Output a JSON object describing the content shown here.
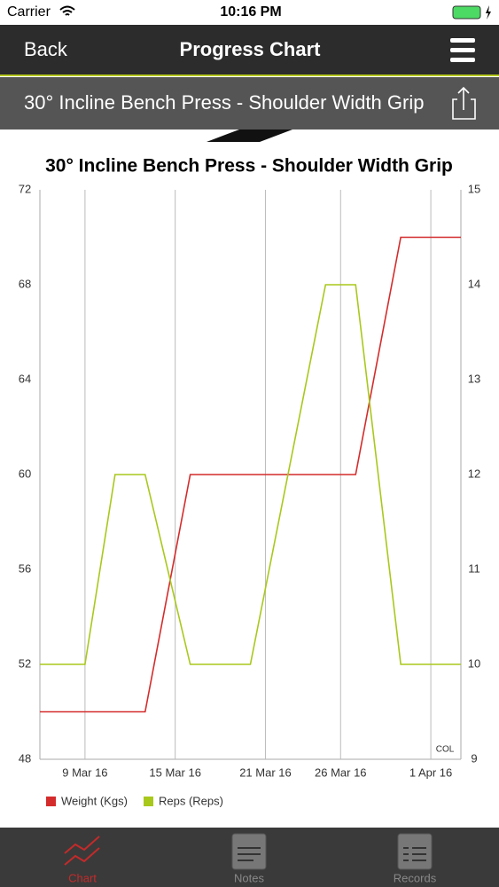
{
  "status_bar": {
    "carrier": "Carrier",
    "time": "10:16 PM"
  },
  "nav": {
    "back": "Back",
    "title": "Progress Chart"
  },
  "exercise": "30° Incline Bench Press - Shoulder Width Grip",
  "chart_data": {
    "type": "line",
    "title": "30° Incline Bench Press - Shoulder Width Grip",
    "x": [
      6,
      9,
      11,
      13,
      16,
      20,
      25,
      27,
      30,
      34
    ],
    "xlim": [
      6,
      34
    ],
    "xticks": [
      {
        "value": 9,
        "label": "9 Mar 16"
      },
      {
        "value": 15,
        "label": "15 Mar 16"
      },
      {
        "value": 21,
        "label": "21 Mar 16"
      },
      {
        "value": 26,
        "label": "26 Mar 16"
      },
      {
        "value": 32,
        "label": "1 Apr 16"
      }
    ],
    "ylim": [
      48,
      72
    ],
    "yticks": [
      48,
      52,
      56,
      60,
      64,
      68,
      72
    ],
    "y2lim": [
      9,
      15
    ],
    "y2ticks": [
      9,
      10,
      11,
      12,
      13,
      14,
      15
    ],
    "series": [
      {
        "name": "Weight (Kgs)",
        "color": "#d42c2c",
        "values": [
          50,
          50,
          50,
          50,
          60,
          60,
          60,
          60,
          70,
          70
        ]
      },
      {
        "name": "Reps (Reps)",
        "color": "#a8c81c",
        "axis": "y2",
        "values": [
          10,
          10,
          12,
          12,
          10,
          10,
          14,
          14,
          10,
          10
        ]
      }
    ],
    "annotation": "COL",
    "grid": "x"
  },
  "tabs": [
    "Chart",
    "Notes",
    "Records"
  ]
}
